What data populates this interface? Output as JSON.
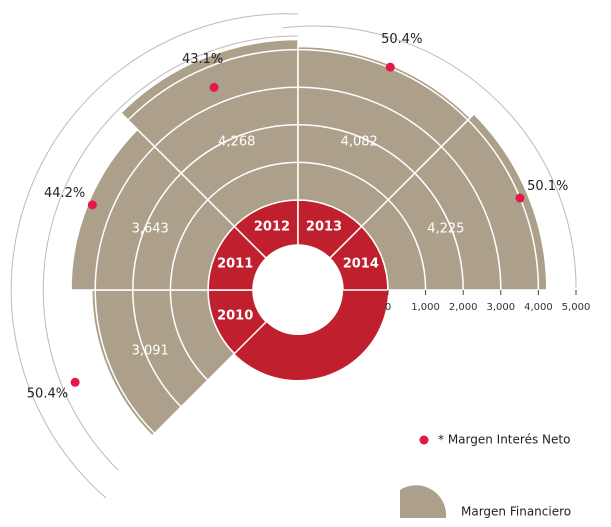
{
  "chart_data": {
    "type": "polar_bar",
    "categories": [
      "2010",
      "2011",
      "2012",
      "2013",
      "2014"
    ],
    "series": [
      {
        "name": "Margen Financiero",
        "color": "#ada08b",
        "values": [
          3091,
          3643,
          4268,
          4082,
          4225
        ],
        "value_labels": [
          "3,091",
          "3,643",
          "4,268",
          "4,082",
          "4,225"
        ]
      },
      {
        "name": "* Margen Interés Neto",
        "color": "#e3194b",
        "values": [
          50.4,
          44.2,
          43.1,
          50.4,
          50.1
        ],
        "value_labels": [
          "50.4%",
          "44.2%",
          "43.1%",
          "50.4%",
          "50.1%"
        ]
      }
    ],
    "ring_color": "#c0202e",
    "rlim": [
      0,
      5000
    ],
    "rticks": [
      0,
      {
        "value": 1000,
        "label": "1,000"
      },
      {
        "value": 2000,
        "label": "2,000"
      },
      {
        "value": 3000,
        "label": "3,000"
      },
      {
        "value": 4000,
        "label": "4,000"
      },
      {
        "value": 5000,
        "label": "5,000"
      }
    ]
  }
}
